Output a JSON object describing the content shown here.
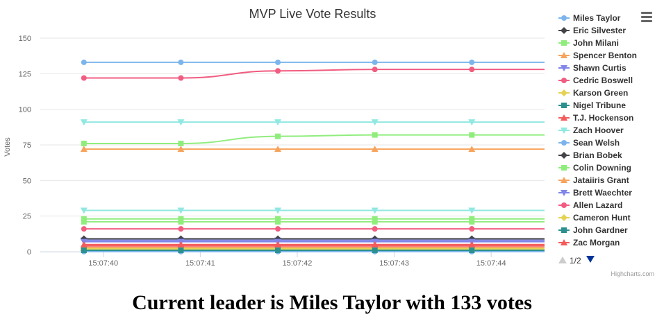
{
  "page": {
    "leader_text": "Current leader is Miles Taylor with 133 votes",
    "credits": "Highcharts.com",
    "legend_pager": "1/2"
  },
  "chart_data": {
    "type": "line",
    "title": "MVP Live Vote Results",
    "xlabel": "",
    "ylabel": "Votes",
    "ylim": [
      0,
      150
    ],
    "yticks": [
      0,
      25,
      50,
      75,
      100,
      125,
      150
    ],
    "xlim": [
      "15:07:39.35",
      "15:07:44.55"
    ],
    "xticks": [
      "15:07:40",
      "15:07:41",
      "15:07:42",
      "15:07:43",
      "15:07:44"
    ],
    "grid": true,
    "legend_position": "right",
    "x": [
      "15:07:39.8",
      "15:07:40.8",
      "15:07:41.8",
      "15:07:42.8",
      "15:07:43.8",
      "15:07:44.55"
    ],
    "series": [
      {
        "name": "Miles Taylor",
        "color": "#7cb5ec",
        "marker": "circle",
        "values": [
          133,
          133,
          133,
          133,
          133,
          133
        ]
      },
      {
        "name": "Eric Silvester",
        "color": "#434348",
        "marker": "diamond",
        "values": [
          1,
          1,
          1,
          1,
          1,
          1
        ]
      },
      {
        "name": "John Milani",
        "color": "#90ed7d",
        "marker": "square",
        "values": [
          76,
          76,
          81,
          82,
          82,
          82
        ]
      },
      {
        "name": "Spencer Benton",
        "color": "#f7a35c",
        "marker": "triangle",
        "values": [
          72,
          72,
          72,
          72,
          72,
          72
        ]
      },
      {
        "name": "Shawn Curtis",
        "color": "#8085e9",
        "marker": "triangle-down",
        "values": [
          8,
          8,
          8,
          8,
          8,
          8
        ]
      },
      {
        "name": "Cedric Boswell",
        "color": "#f15c80",
        "marker": "circle",
        "values": [
          122,
          122,
          127,
          128,
          128,
          128
        ]
      },
      {
        "name": "Karson Green",
        "color": "#e4d354",
        "marker": "diamond",
        "values": [
          2,
          2,
          2,
          2,
          2,
          2
        ]
      },
      {
        "name": "Nigel Tribune",
        "color": "#2b908f",
        "marker": "square",
        "values": [
          1,
          1,
          1,
          1,
          1,
          1
        ]
      },
      {
        "name": "T.J. Hockenson",
        "color": "#f45b5b",
        "marker": "triangle",
        "values": [
          4,
          4,
          4,
          4,
          4,
          4
        ]
      },
      {
        "name": "Zach Hoover",
        "color": "#91e8e1",
        "marker": "triangle-down",
        "values": [
          91,
          91,
          91,
          91,
          91,
          91
        ]
      },
      {
        "name": "Sean Welsh",
        "color": "#7cb5ec",
        "marker": "circle",
        "values": [
          0,
          0,
          0,
          0,
          0,
          0
        ]
      },
      {
        "name": "Brian Bobek",
        "color": "#434348",
        "marker": "diamond",
        "values": [
          9,
          9,
          9,
          9,
          9,
          9
        ]
      },
      {
        "name": "Colin Downing",
        "color": "#90ed7d",
        "marker": "square",
        "values": [
          23,
          23,
          23,
          23,
          23,
          23
        ]
      },
      {
        "name": "Jataiiris Grant",
        "color": "#f7a35c",
        "marker": "triangle",
        "values": [
          3,
          3,
          3,
          3,
          3,
          3
        ]
      },
      {
        "name": "Brett Waechter",
        "color": "#8085e9",
        "marker": "triangle-down",
        "values": [
          7,
          7,
          7,
          7,
          7,
          7
        ]
      },
      {
        "name": "Allen Lazard",
        "color": "#f15c80",
        "marker": "circle",
        "values": [
          16,
          16,
          16,
          16,
          16,
          16
        ]
      },
      {
        "name": "Cameron Hunt",
        "color": "#e4d354",
        "marker": "diamond",
        "values": [
          2,
          2,
          2,
          2,
          2,
          2
        ]
      },
      {
        "name": "John Gardner",
        "color": "#2b908f",
        "marker": "square",
        "values": [
          1,
          1,
          1,
          1,
          1,
          1
        ]
      },
      {
        "name": "Zac Morgan",
        "color": "#f45b5b",
        "marker": "triangle",
        "values": [
          5,
          5,
          5,
          5,
          5,
          5
        ]
      },
      {
        "name": "",
        "color": "#91e8e1",
        "marker": "triangle-down",
        "values": [
          29,
          29,
          29,
          29,
          29,
          29
        ]
      },
      {
        "name": "",
        "color": "#90ed7d",
        "marker": "square",
        "values": [
          21,
          21,
          21,
          21,
          21,
          21
        ]
      }
    ]
  }
}
